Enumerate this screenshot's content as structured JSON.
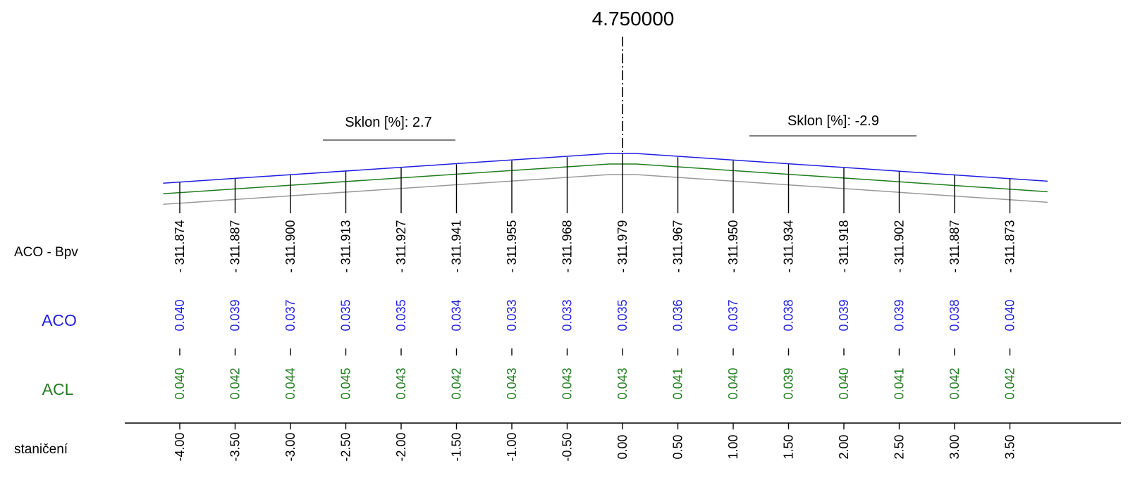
{
  "title": "4.750000",
  "row_labels": {
    "elev": "ACO - Bpv",
    "aco": "ACO",
    "acl": "ACL",
    "station": "staničení"
  },
  "slopes": {
    "left": "Sklon [%]:  2.7",
    "right": "Sklon [%]:  -2.9"
  },
  "colors": {
    "aco": "#1f1fe0",
    "acl": "#1e7d1e",
    "base": "#999999",
    "text": "#000000"
  },
  "chart_data": {
    "type": "line",
    "x": [
      -4.0,
      -3.5,
      -3.0,
      -2.5,
      -2.0,
      -1.5,
      -1.0,
      -0.5,
      0.0,
      0.5,
      1.0,
      1.5,
      2.0,
      2.5,
      3.0,
      3.5
    ],
    "station_labels": [
      "-4.00",
      "-3.50",
      "-3.00",
      "-2.50",
      "-2.00",
      "-1.50",
      "-1.00",
      "-0.50",
      "0.00",
      "0.50",
      "1.00",
      "1.50",
      "2.00",
      "2.50",
      "3.00",
      "3.50"
    ],
    "elevations": [
      "311.874",
      "311.887",
      "311.900",
      "311.913",
      "311.927",
      "311.941",
      "311.955",
      "311.968",
      "311.979",
      "311.967",
      "311.950",
      "311.934",
      "311.918",
      "311.902",
      "311.887",
      "311.873"
    ],
    "aco_thickness": [
      "0.040",
      "0.039",
      "0.037",
      "0.035",
      "0.035",
      "0.034",
      "0.033",
      "0.033",
      "0.035",
      "0.036",
      "0.037",
      "0.038",
      "0.039",
      "0.039",
      "0.038",
      "0.040"
    ],
    "acl_thickness": [
      "0.040",
      "0.042",
      "0.044",
      "0.045",
      "0.043",
      "0.042",
      "0.043",
      "0.043",
      "0.043",
      "0.041",
      "0.040",
      "0.039",
      "0.040",
      "0.041",
      "0.042",
      "0.042"
    ],
    "series": [
      {
        "color": "#1f1fe0"
      },
      {
        "color": "#1e7d1e"
      },
      {
        "color": "#999999"
      }
    ]
  }
}
